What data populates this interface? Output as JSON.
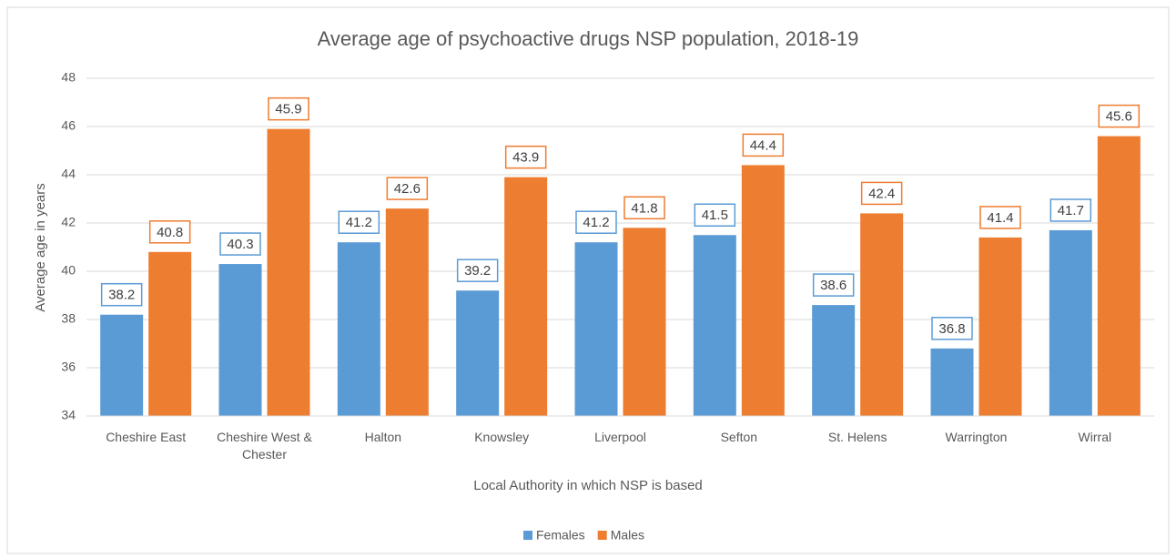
{
  "chart_data": {
    "type": "bar",
    "title": "Average age of psychoactive drugs NSP population, 2018-19",
    "x_label": "Local Authority in which NSP is based",
    "y_label": "Average age in years",
    "categories": [
      "Cheshire East",
      "Cheshire West & Chester",
      "Halton",
      "Knowsley",
      "Liverpool",
      "Sefton",
      "St. Helens",
      "Warrington",
      "Wirral"
    ],
    "series": [
      {
        "name": "Females",
        "color": "#5b9bd5",
        "values": [
          38.2,
          40.3,
          41.2,
          39.2,
          41.2,
          41.5,
          38.6,
          36.8,
          41.7
        ]
      },
      {
        "name": "Males",
        "color": "#ed7d31",
        "values": [
          40.8,
          45.9,
          42.6,
          43.9,
          41.8,
          44.4,
          42.4,
          41.4,
          45.6
        ]
      }
    ],
    "ylim": [
      34,
      48
    ],
    "yticks": [
      34,
      36,
      38,
      40,
      42,
      44,
      46,
      48
    ],
    "grid": true,
    "legend": "bottom"
  }
}
